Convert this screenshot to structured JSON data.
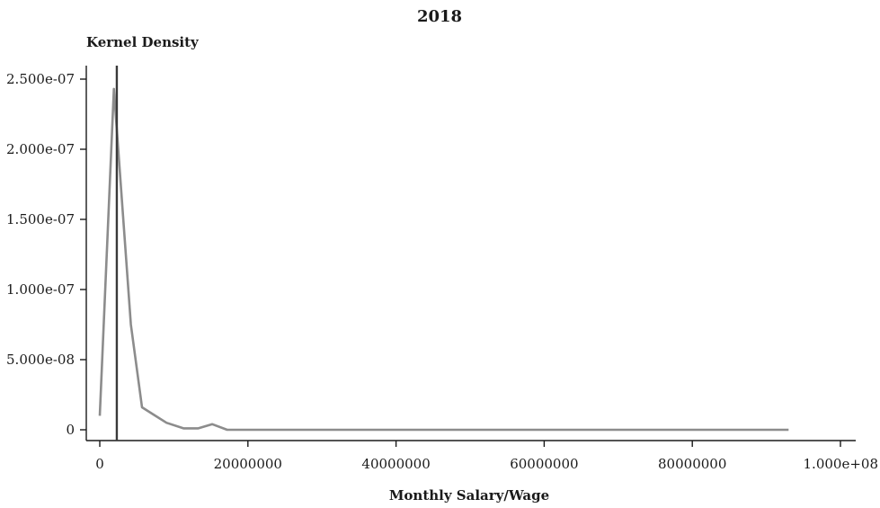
{
  "chart_data": {
    "type": "line",
    "title": "2018",
    "ylabel": "Kernel Density",
    "xlabel": "Monthly Salary/Wage",
    "xlim": [
      0,
      100000000
    ],
    "ylim": [
      0,
      2.5e-07
    ],
    "x_ticks": [
      0,
      20000000,
      40000000,
      60000000,
      80000000,
      100000000
    ],
    "x_tick_labels": [
      "0",
      "20000000",
      "40000000",
      "60000000",
      "80000000",
      "1.000e+08"
    ],
    "y_ticks": [
      0,
      5e-08,
      1e-07,
      1.5e-07,
      2e-07,
      2.5e-07
    ],
    "y_tick_labels": [
      "0",
      "5.000e-08",
      "1.000e-07",
      "1.500e-07",
      "2.000e-07",
      "2.500e-07"
    ],
    "grid": false,
    "series": [
      {
        "color": "#8c8c8c",
        "x": [
          0,
          1900000,
          4200000,
          5700000,
          7500000,
          9000000,
          11300000,
          13300000,
          15200000,
          17200000,
          20000000,
          40000000,
          60000000,
          80000000,
          93000000
        ],
        "y": [
          1e-08,
          2.43e-07,
          7.5e-08,
          1.6e-08,
          1e-08,
          5e-09,
          1e-09,
          1e-09,
          4e-09,
          0,
          0,
          0,
          0,
          0,
          0
        ]
      }
    ],
    "reference_lines": [
      {
        "orientation": "vertical",
        "x": 2300000,
        "color": "#3a3a3a"
      }
    ]
  }
}
